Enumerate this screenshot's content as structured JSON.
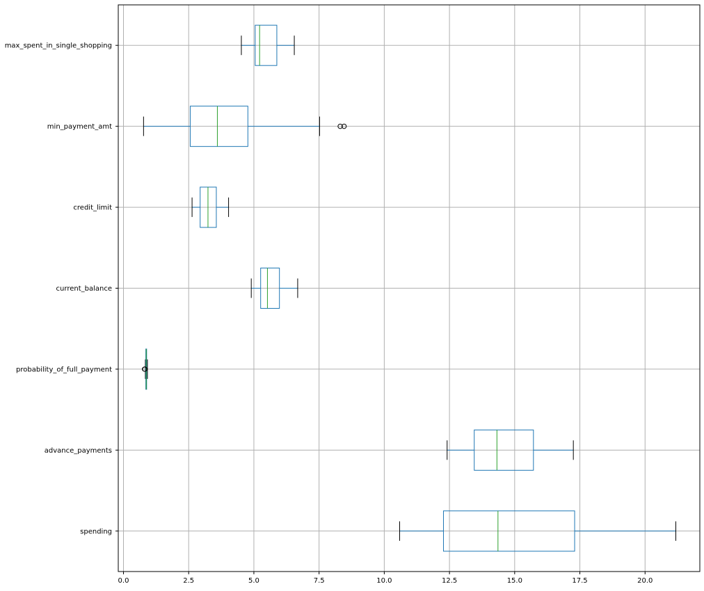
{
  "chart_data": {
    "type": "boxplot",
    "orientation": "horizontal",
    "title": "",
    "xlabel": "",
    "ylabel": "",
    "xlim": [
      -0.2,
      22.1
    ],
    "grid": true,
    "x_ticks": [
      0.0,
      2.5,
      5.0,
      7.5,
      10.0,
      12.5,
      15.0,
      17.5,
      20.0
    ],
    "x_tick_labels": [
      "0.0",
      "2.5",
      "5.0",
      "7.5",
      "10.0",
      "12.5",
      "15.0",
      "17.5",
      "20.0"
    ],
    "colors": {
      "box": "#1f77b4",
      "median": "#2ca02c",
      "whisker_cap": "#000000",
      "grid": "#b0b0b0",
      "flier": "#000000"
    },
    "series": [
      {
        "name": "spending",
        "whisker_low": 10.59,
        "q1": 12.27,
        "median": 14.36,
        "q3": 17.3,
        "whisker_high": 21.18,
        "outliers": []
      },
      {
        "name": "advance_payments",
        "whisker_low": 12.41,
        "q1": 13.45,
        "median": 14.32,
        "q3": 15.72,
        "whisker_high": 17.25,
        "outliers": []
      },
      {
        "name": "probability_of_full_payment",
        "whisker_low": 0.839,
        "q1": 0.857,
        "median": 0.873,
        "q3": 0.888,
        "whisker_high": 0.918,
        "outliers": [
          0.808,
          0.819
        ]
      },
      {
        "name": "current_balance",
        "whisker_low": 4.9,
        "q1": 5.26,
        "median": 5.52,
        "q3": 5.98,
        "whisker_high": 6.68,
        "outliers": []
      },
      {
        "name": "credit_limit",
        "whisker_low": 2.63,
        "q1": 2.94,
        "median": 3.24,
        "q3": 3.56,
        "whisker_high": 4.03,
        "outliers": []
      },
      {
        "name": "min_payment_amt",
        "whisker_low": 0.77,
        "q1": 2.56,
        "median": 3.6,
        "q3": 4.77,
        "whisker_high": 7.52,
        "outliers": [
          8.31,
          8.46
        ]
      },
      {
        "name": "max_spent_in_single_shopping",
        "whisker_low": 4.52,
        "q1": 5.05,
        "median": 5.22,
        "q3": 5.88,
        "whisker_high": 6.55,
        "outliers": []
      }
    ]
  }
}
